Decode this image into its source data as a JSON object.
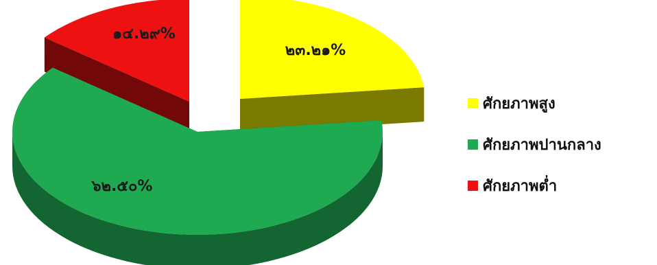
{
  "chart_data": {
    "type": "pie",
    "title": "",
    "slices": [
      {
        "name": "ศักยภาพสูง",
        "value": 23.21,
        "label": "๒๓.๒๑%",
        "color": "#ffff00"
      },
      {
        "name": "ศักยภาพปานกลาง",
        "value": 62.5,
        "label": "๖๒.๕๐%",
        "color": "#1faa52"
      },
      {
        "name": "ศักยภาพต่ำ",
        "value": 14.29,
        "label": "๑๔.๒๙%",
        "color": "#ee1111"
      }
    ],
    "style": "3d-exploded",
    "legend_position": "right"
  }
}
